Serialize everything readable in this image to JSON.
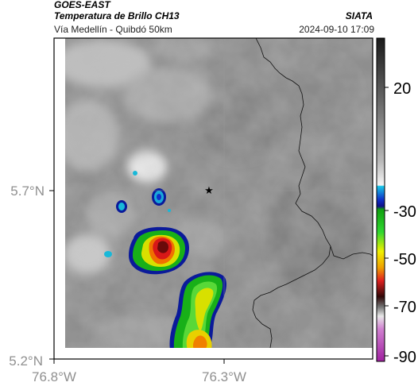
{
  "header": {
    "satellite": "GOES-EAST",
    "product": "Temperatura de Brillo CH13",
    "organization": "SIATA",
    "route": "Vía Medellín - Quibdó 50km",
    "datetime": "2024-09-10 17:09"
  },
  "axes": {
    "lat_ticks": [
      "5.7°N",
      "5.2°N"
    ],
    "lon_ticks": [
      "76.8°W",
      "76.3°W"
    ]
  },
  "colorbar": {
    "ticks": [
      "20",
      "-30",
      "-50",
      "-70",
      "-90"
    ]
  },
  "colors": {
    "background": "#ffffff",
    "map_gray": "#8e8e8e",
    "cold_cloud_red": "#d01818",
    "cold_cloud_yellow": "#f0f000",
    "cold_cloud_green": "#18c818",
    "cold_cloud_blue": "#1030c8",
    "cyan": "#18b8d8"
  },
  "markers": [
    {
      "icon": "star-icon"
    }
  ]
}
